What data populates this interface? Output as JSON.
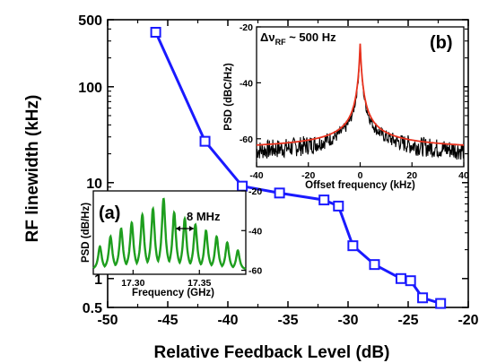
{
  "chart_data": [
    {
      "type": "line",
      "title": "",
      "xlabel": "Relative Feedback Level (dB)",
      "ylabel": "RF linewidth (kHz)",
      "xlim": [
        -50,
        -20
      ],
      "ylim": [
        0.5,
        500
      ],
      "yscale": "log",
      "x_ticks": [
        -50,
        -45,
        -40,
        -35,
        -30,
        -25,
        -20
      ],
      "y_ticks": [
        0.5,
        1,
        10,
        100,
        500
      ],
      "x_tick_labels": [
        "-50",
        "-45",
        "-40",
        "-35",
        "-30",
        "-25",
        "-20"
      ],
      "y_tick_labels": [
        "0.5",
        "1",
        "10",
        "100",
        "500"
      ],
      "grid": false,
      "series": [
        {
          "color": "#1a1aff",
          "marker": "open-square",
          "x": [
            -46.0,
            -41.9,
            -38.8,
            -35.7,
            -32.0,
            -30.8,
            -29.6,
            -27.8,
            -25.6,
            -24.8,
            -23.8,
            -22.3
          ],
          "y": [
            370,
            27,
            9.2,
            7.8,
            6.6,
            5.7,
            2.2,
            1.4,
            1.0,
            0.95,
            0.63,
            0.55
          ]
        }
      ]
    },
    {
      "type": "line",
      "panel_label": "(a)",
      "xlabel": "Frequency (GHz)",
      "ylabel": "PSD (dB/Hz)",
      "xlim": [
        17.27,
        17.385
      ],
      "ylim": [
        -62,
        -20
      ],
      "x_ticks": [
        17.3,
        17.35
      ],
      "x_tick_labels": [
        "17.30",
        "17.35"
      ],
      "y_ticks": [
        -20,
        -40,
        -60
      ],
      "y_tick_labels": [
        "-20",
        "-40",
        "-60"
      ],
      "annotation": "8 MHz",
      "series": [
        {
          "color": "#1e9e1e",
          "x": [
            17.275,
            17.283,
            17.291,
            17.299,
            17.307,
            17.315,
            17.323,
            17.331,
            17.339,
            17.347,
            17.355,
            17.363,
            17.371,
            17.379
          ],
          "y": [
            -48,
            -43,
            -39,
            -36,
            -32,
            -29,
            -24,
            -31,
            -34,
            -37,
            -40,
            -43,
            -46,
            -50
          ]
        }
      ]
    },
    {
      "type": "line",
      "panel_label": "(b)",
      "annotation": "Δν",
      "annotation_subscript": "RF",
      "annotation_tail": " ~ 500 Hz",
      "xlabel": "Offset frequency (kHz)",
      "ylabel": "PSD (dBC/Hz)",
      "xlim": [
        -40,
        40
      ],
      "ylim": [
        -70,
        -20
      ],
      "x_ticks": [
        -40,
        -20,
        0,
        20,
        40
      ],
      "x_tick_labels": [
        "-40",
        "-20",
        "0",
        "20",
        "40"
      ],
      "y_ticks": [
        -20,
        -40,
        -60
      ],
      "y_tick_labels": [
        "-20",
        "-40",
        "-60"
      ],
      "series": [
        {
          "color": "#000000",
          "description_key": "measured",
          "peak": -26,
          "floor": -67
        },
        {
          "color": "#e8321e",
          "description_key": "fit",
          "peak": -26,
          "floor": -65
        }
      ]
    }
  ]
}
